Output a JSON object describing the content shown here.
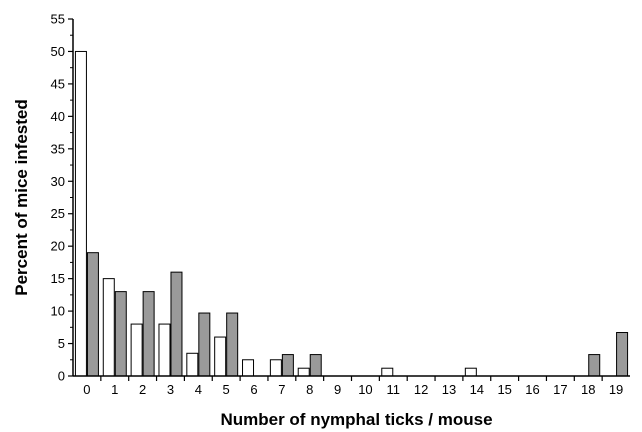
{
  "chart_data": {
    "type": "bar",
    "title": "",
    "xlabel": "Number of nymphal ticks / mouse",
    "ylabel": "Percent of mice infested",
    "ylim": [
      0,
      55
    ],
    "yticks": [
      0,
      5,
      10,
      15,
      20,
      25,
      30,
      35,
      40,
      45,
      50,
      55
    ],
    "categories": [
      "0",
      "1",
      "2",
      "3",
      "4",
      "5",
      "6",
      "7",
      "8",
      "9",
      "10",
      "11",
      "12",
      "13",
      "14",
      "15",
      "16",
      "17",
      "18",
      "19"
    ],
    "series": [
      {
        "fill": "#ffffff",
        "values": [
          50,
          15,
          8,
          8,
          3.5,
          6,
          2.5,
          2.5,
          1.2,
          0,
          0,
          1.2,
          0,
          0,
          1.2,
          0,
          0,
          0,
          0,
          0
        ]
      },
      {
        "fill": "#9a9a9a",
        "values": [
          19,
          13,
          13,
          16,
          9.7,
          9.7,
          0,
          3.3,
          3.3,
          0,
          0,
          0,
          0,
          0,
          0,
          0,
          0,
          0,
          3.3,
          6.7
        ]
      }
    ],
    "grid": false,
    "legend": "none"
  }
}
